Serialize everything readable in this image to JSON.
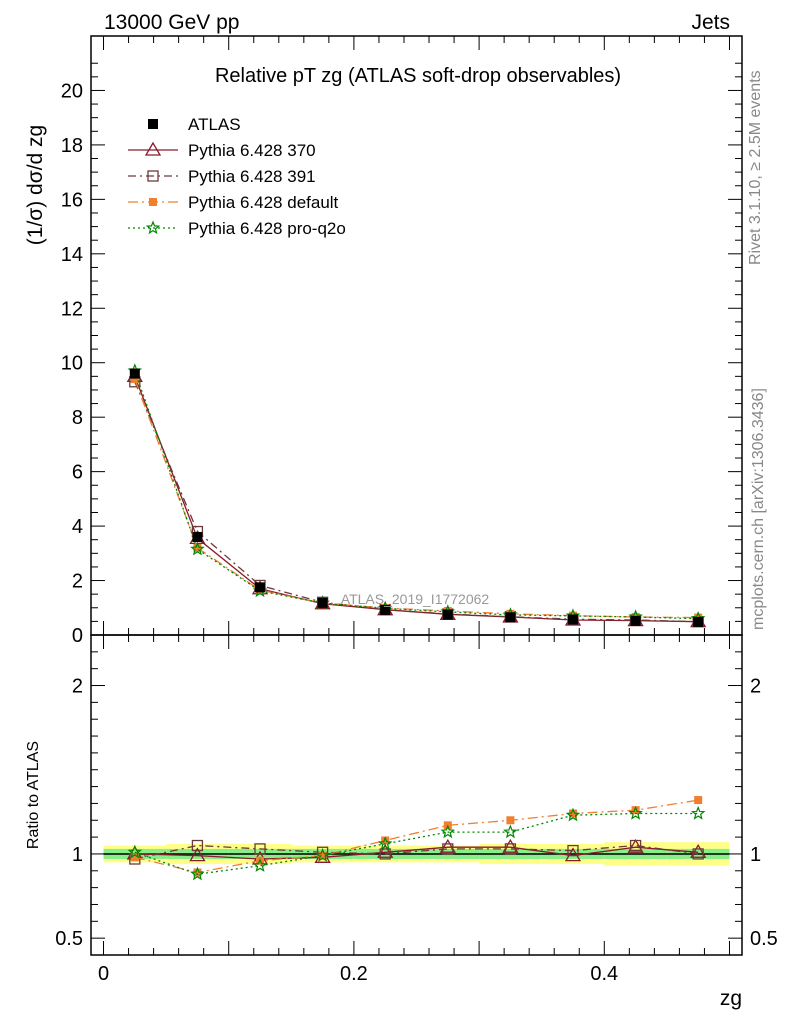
{
  "header": {
    "left": "13000 GeV pp",
    "right": "Jets"
  },
  "side_labels": {
    "top": "Rivet 3.1.10, ≥ 2.5M events",
    "bottom": "mcplots.cern.ch [arXiv:1306.3436]"
  },
  "chart_data": [
    {
      "type": "line",
      "panel": "main",
      "title": "Relative pT zg (ATLAS soft-drop observables)",
      "ylabel": "(1/σ) dσ/d zg",
      "watermark": "ATLAS_2019_I1772062",
      "ylim": [
        0,
        22
      ],
      "xlim": [
        -0.01,
        0.51
      ],
      "yticks": [
        0,
        2,
        4,
        6,
        8,
        10,
        12,
        14,
        16,
        18,
        20
      ],
      "legend_position": "top-left",
      "x": [
        0.025,
        0.075,
        0.125,
        0.175,
        0.225,
        0.275,
        0.325,
        0.375,
        0.425,
        0.475
      ],
      "series": [
        {
          "name": "ATLAS",
          "color": "#000000",
          "marker": "square-filled",
          "style": "none",
          "values": [
            9.6,
            3.6,
            1.75,
            1.18,
            0.92,
            0.75,
            0.65,
            0.57,
            0.52,
            0.48
          ]
        },
        {
          "name": "Pythia 6.428 370",
          "color": "#8b1a2b",
          "marker": "triangle-open",
          "style": "solid",
          "values": [
            9.5,
            3.55,
            1.7,
            1.15,
            0.93,
            0.76,
            0.66,
            0.55,
            0.53,
            0.49
          ]
        },
        {
          "name": "Pythia 6.428 391",
          "color": "#6b3a3a",
          "marker": "square-open",
          "style": "dashdot",
          "values": [
            9.3,
            3.8,
            1.82,
            1.2,
            0.93,
            0.77,
            0.67,
            0.58,
            0.55,
            0.49
          ]
        },
        {
          "name": "Pythia 6.428 default",
          "color": "#f08030",
          "marker": "square-filled-small",
          "style": "dashdot-long",
          "values": [
            9.4,
            3.2,
            1.65,
            1.17,
            0.99,
            0.88,
            0.78,
            0.71,
            0.66,
            0.64
          ]
        },
        {
          "name": "Pythia 6.428 pro-q2o",
          "color": "#008800",
          "marker": "star",
          "style": "dotted",
          "values": [
            9.7,
            3.15,
            1.62,
            1.17,
            0.98,
            0.85,
            0.74,
            0.7,
            0.66,
            0.6
          ]
        }
      ]
    },
    {
      "type": "line",
      "panel": "ratio",
      "ylabel": "Ratio to ATLAS",
      "xlabel": "zg",
      "ylim": [
        0.4,
        2.3
      ],
      "yticks": [
        0.5,
        1,
        2
      ],
      "xticks": [
        0,
        0.2,
        0.4
      ],
      "x": [
        0.025,
        0.075,
        0.125,
        0.175,
        0.225,
        0.275,
        0.325,
        0.375,
        0.425,
        0.475
      ],
      "bands": {
        "outer_color": "#ffff88",
        "inner_color": "#88ee88",
        "outer": [
          0.05,
          0.06,
          0.06,
          0.05,
          0.05,
          0.05,
          0.06,
          0.06,
          0.07,
          0.07
        ],
        "inner": [
          0.03,
          0.03,
          0.03,
          0.03,
          0.03,
          0.03,
          0.03,
          0.03,
          0.03,
          0.03
        ]
      },
      "series": [
        {
          "name": "Pythia 6.428 370",
          "values": [
            1.0,
            0.99,
            0.97,
            0.98,
            1.01,
            1.04,
            1.04,
            0.99,
            1.04,
            1.01
          ]
        },
        {
          "name": "Pythia 6.428 391",
          "values": [
            0.97,
            1.05,
            1.03,
            1.01,
            1.0,
            1.03,
            1.03,
            1.02,
            1.05,
            1.0
          ]
        },
        {
          "name": "Pythia 6.428 default",
          "values": [
            0.98,
            0.89,
            0.96,
            0.99,
            1.08,
            1.17,
            1.2,
            1.24,
            1.26,
            1.32
          ]
        },
        {
          "name": "Pythia 6.428 pro-q2o",
          "values": [
            1.01,
            0.88,
            0.93,
            0.99,
            1.06,
            1.13,
            1.13,
            1.23,
            1.24,
            1.24
          ]
        }
      ]
    }
  ]
}
